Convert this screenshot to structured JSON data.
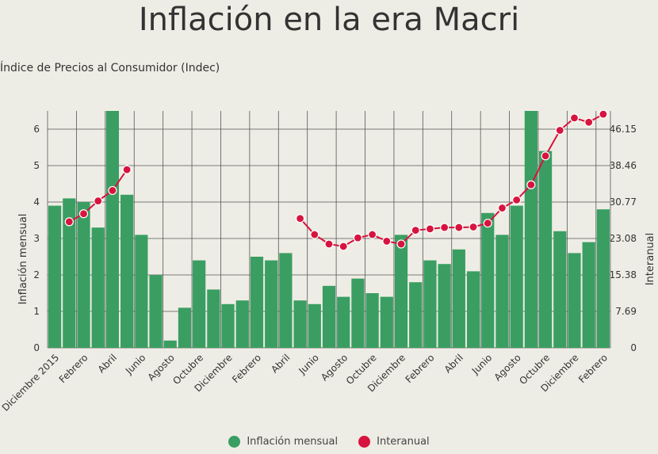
{
  "header": {
    "title": "Inflación en la era Macri",
    "subtitle": "Índice de Precios al Consumidor (Indec)"
  },
  "chart_data": {
    "type": "bar",
    "title": "Inflación en la era Macri",
    "subtitle": "Índice de Precios al Consumidor (Indec)",
    "ylabel": "Inflación mensual",
    "y2label": "Interanual",
    "ylim": [
      0,
      6.5
    ],
    "y2lim": [
      0,
      49.99
    ],
    "yticks": [
      0,
      1,
      2,
      3,
      4,
      5,
      6
    ],
    "y2ticks": [
      "0",
      "7.69",
      "15.38",
      "23.08",
      "30.77",
      "38.46",
      "46.15"
    ],
    "xticks": [
      "Diciembre 2015",
      "Febrero",
      "Abril",
      "Junio",
      "Agosto",
      "Octubre",
      "Diciembre",
      "Febrero",
      "Abril",
      "Junio",
      "Agosto",
      "Octubre",
      "Diciembre",
      "Febrero",
      "Abril",
      "Junio",
      "Agosto",
      "Octubre",
      "Diciembre",
      "Febrero"
    ],
    "grid": true,
    "legend_position": "bottom-center",
    "colors": {
      "bars": "#3a9e62",
      "line": "#d7143f",
      "grid": "#555555"
    },
    "series": [
      {
        "name": "Inflación mensual",
        "type": "bar",
        "values": [
          3.9,
          4.1,
          4.0,
          3.3,
          6.7,
          4.2,
          3.1,
          2.0,
          0.2,
          1.1,
          2.4,
          1.6,
          1.2,
          1.3,
          2.5,
          2.4,
          2.6,
          1.3,
          1.2,
          1.7,
          1.4,
          1.9,
          1.5,
          1.4,
          3.1,
          1.8,
          2.4,
          2.3,
          2.7,
          2.1,
          3.7,
          3.1,
          3.9,
          6.5,
          5.4,
          3.2,
          2.6,
          2.9,
          3.8
        ]
      },
      {
        "name": "Interanual",
        "type": "line",
        "values": [
          null,
          26.6,
          28.3,
          31.0,
          33.2,
          37.6,
          null,
          null,
          null,
          null,
          null,
          null,
          null,
          null,
          null,
          null,
          null,
          27.3,
          23.9,
          21.9,
          21.4,
          23.2,
          23.9,
          22.5,
          21.9,
          24.8,
          25.1,
          25.4,
          25.4,
          25.5,
          26.3,
          29.5,
          31.2,
          34.4,
          40.5,
          45.9,
          48.5,
          47.6,
          49.3
        ]
      }
    ]
  }
}
